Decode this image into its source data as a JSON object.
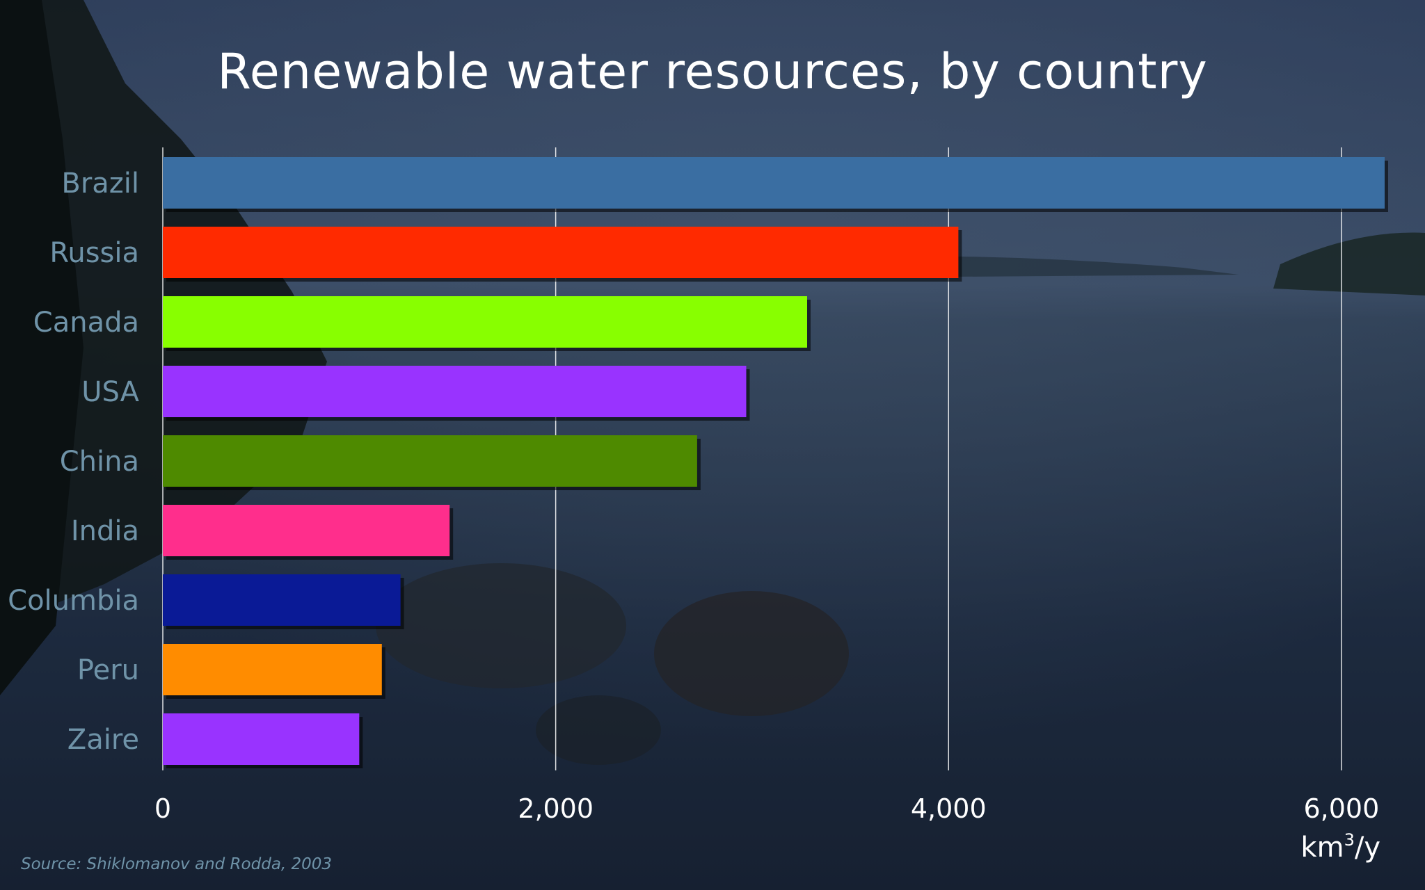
{
  "chart_data": {
    "type": "bar",
    "orientation": "horizontal",
    "title": "Renewable water resources, by country",
    "categories": [
      "Brazil",
      "Russia",
      "Canada",
      "USA",
      "China",
      "India",
      "Columbia",
      "Peru",
      "Zaire"
    ],
    "values": [
      6220,
      4050,
      3280,
      2970,
      2720,
      1460,
      1210,
      1115,
      1000
    ],
    "bar_colors": [
      "#3a6ea2",
      "#ff2a00",
      "#88ff00",
      "#9933ff",
      "#4e8a00",
      "#ff2e8c",
      "#0a1a96",
      "#ff8c00",
      "#9933ff"
    ],
    "xlim": [
      0,
      6220
    ],
    "xticks": [
      0,
      2000,
      4000,
      6000
    ],
    "xtick_labels": [
      "0",
      "2,000",
      "4,000",
      "6,000"
    ],
    "xlabel_unit_base": "km",
    "xlabel_unit_exp": "3",
    "xlabel_unit_suffix": "/y",
    "grid": "vertical",
    "source": "Source: Shiklomanov and Rodda, 2003"
  }
}
